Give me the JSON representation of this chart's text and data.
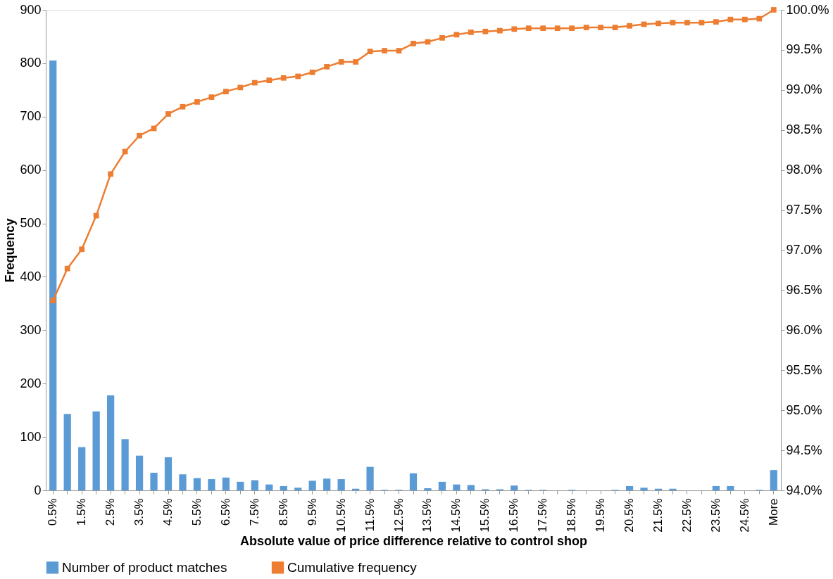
{
  "chart_data": {
    "type": "bar",
    "xlabel": "Absolute value of price difference relative to control shop",
    "ylabel": "Frequency",
    "categories": [
      "0.5%",
      null,
      "1.5%",
      null,
      "2.5%",
      null,
      "3.5%",
      null,
      "4.5%",
      null,
      "5.5%",
      null,
      "6.5%",
      null,
      "7.5%",
      null,
      "8.5%",
      null,
      "9.5%",
      null,
      "10.5%",
      null,
      "11.5%",
      null,
      "12.5%",
      null,
      "13.5%",
      null,
      "14.5%",
      null,
      "15.5%",
      null,
      "16.5%",
      null,
      "17.5%",
      null,
      "18.5%",
      null,
      "19.5%",
      null,
      "20.5%",
      null,
      "21.5%",
      null,
      "22.5%",
      null,
      "23.5%",
      null,
      "24.5%",
      null,
      "More"
    ],
    "series": [
      {
        "name": "Number of product matches",
        "color": "#5b9bd5",
        "values": [
          805,
          143,
          81,
          148,
          178,
          96,
          65,
          33,
          62,
          30,
          23,
          21,
          24,
          16,
          19,
          11,
          8,
          5,
          18,
          22,
          21,
          3,
          44,
          1,
          1,
          32,
          4,
          16,
          11,
          10,
          2,
          2,
          9,
          1,
          1,
          0,
          1,
          0,
          0,
          1,
          8,
          5,
          3,
          3,
          0,
          0,
          8,
          8,
          0,
          1,
          38
        ]
      },
      {
        "name": "Cumulative frequency",
        "type": "line",
        "axis": "y2",
        "color": "#ed7d31",
        "marker": "square",
        "values": [
          96.37,
          96.77,
          97.01,
          97.43,
          97.95,
          98.23,
          98.43,
          98.52,
          98.7,
          98.79,
          98.85,
          98.91,
          98.98,
          99.03,
          99.09,
          99.12,
          99.15,
          99.17,
          99.22,
          99.29,
          99.35,
          99.35,
          99.48,
          99.49,
          99.49,
          99.58,
          99.6,
          99.65,
          99.69,
          99.72,
          99.73,
          99.74,
          99.76,
          99.77,
          99.77,
          99.77,
          99.77,
          99.78,
          99.78,
          99.78,
          99.8,
          99.82,
          99.83,
          99.84,
          99.84,
          99.84,
          99.85,
          99.88,
          99.88,
          99.89,
          100.0
        ]
      }
    ],
    "ylim": [
      0,
      900
    ],
    "yticks": [
      0,
      100,
      200,
      300,
      400,
      500,
      600,
      700,
      800,
      900
    ],
    "y2lim": [
      94,
      100
    ],
    "y2ticks": [
      {
        "value": 94,
        "label": "94.0%"
      },
      {
        "value": 94.5,
        "label": "94.5%"
      },
      {
        "value": 95,
        "label": "95.0%"
      },
      {
        "value": 95.5,
        "label": "95.5%"
      },
      {
        "value": 96,
        "label": "96.0%"
      },
      {
        "value": 96.5,
        "label": "96.5%"
      },
      {
        "value": 97,
        "label": "97.0%"
      },
      {
        "value": 97.5,
        "label": "97.5%"
      },
      {
        "value": 98,
        "label": "98.0%"
      },
      {
        "value": 98.5,
        "label": "98.5%"
      },
      {
        "value": 99,
        "label": "99.0%"
      },
      {
        "value": 99.5,
        "label": "99.5%"
      },
      {
        "value": 100,
        "label": "100.0%"
      }
    ],
    "grid": false,
    "legend": "bottom"
  }
}
